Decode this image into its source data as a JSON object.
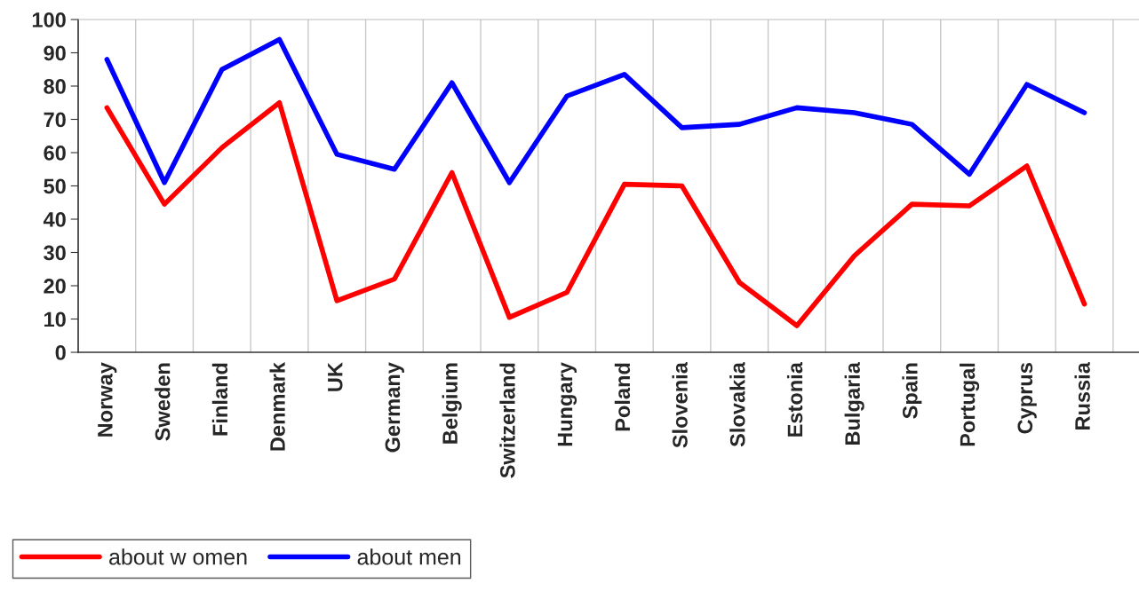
{
  "chart_data": {
    "type": "line",
    "categories": [
      "Norway",
      "Sweden",
      "Finland",
      "Denmark",
      "UK",
      "Germany",
      "Belgium",
      "Switzerland",
      "Hungary",
      "Poland",
      "Slovenia",
      "Slovakia",
      "Estonia",
      "Bulgaria",
      "Spain",
      "Portugal",
      "Cyprus",
      "Russia"
    ],
    "series": [
      {
        "name": "about w omen",
        "color": "#ff0000",
        "values": [
          73.5,
          44.5,
          61.5,
          75,
          15.5,
          22,
          54,
          10.5,
          18,
          50.5,
          50,
          21,
          8,
          29,
          44.5,
          44,
          56,
          14.5
        ]
      },
      {
        "name": "about men",
        "color": "#0000ff",
        "values": [
          88,
          51,
          85,
          94,
          59.5,
          55,
          81,
          51,
          77,
          83.5,
          67.5,
          68.5,
          73.5,
          72,
          68.5,
          53.5,
          80.5,
          72
        ]
      }
    ],
    "ylim": [
      0,
      100
    ],
    "yticks": [
      0,
      10,
      20,
      30,
      40,
      50,
      60,
      70,
      80,
      90,
      100
    ],
    "grid": "x",
    "legend": "bottom left",
    "marker": "none",
    "line_style": "solid"
  }
}
